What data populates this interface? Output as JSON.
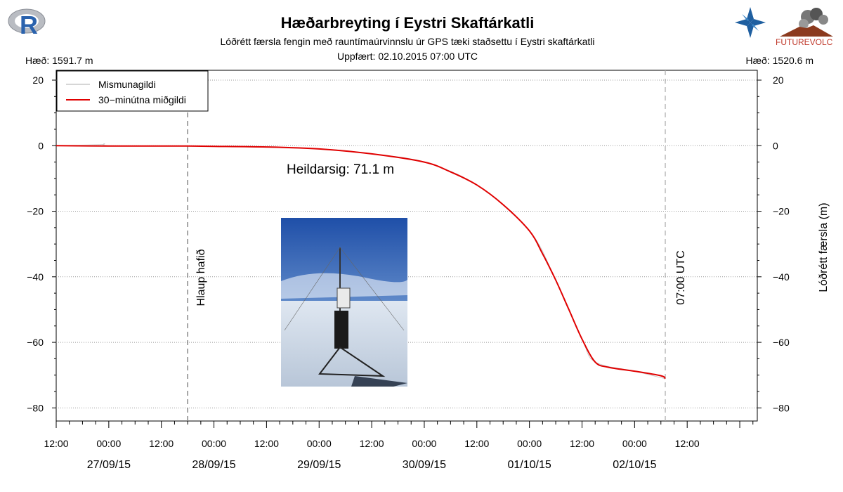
{
  "header": {
    "title": "Hæðarbreyting í Eystri Skaftárkatli",
    "subtitle": "Lóðrétt færsla fengin með rauntímaúrvinnslu úr GPS tæki staðsettu í Eystri skaftárkatli",
    "updated": "Uppfært: 02.10.2015 07:00 UTC",
    "height_left": "Hæð: 1591.7 m",
    "height_right": "Hæð: 1520.6 m",
    "futurevolc_logo_text": "FUTUREVOLC",
    "r_logo_text": "R"
  },
  "colors": {
    "median_line": "#e00000",
    "difference_line": "#c8c8c8",
    "event_line": "#888888",
    "now_line": "#aaaaaa",
    "grid": "#999999"
  },
  "chart_data": {
    "type": "line",
    "title": "Hæðarbreyting í Eystri Skaftárkatli",
    "ylabel": "Lóðrétt færsla (m)",
    "ylim": [
      -84,
      23
    ],
    "yticks": [
      20,
      0,
      -20,
      -40,
      -60,
      -80
    ],
    "xlim": [
      "2015-09-26T12:00",
      "2015-10-03T04:00"
    ],
    "x_tick_labels": [
      "12:00",
      "00:00",
      "12:00",
      "00:00",
      "12:00",
      "00:00",
      "12:00",
      "00:00",
      "12:00",
      "00:00",
      "12:00",
      "00:00",
      "12:00"
    ],
    "x_date_labels": [
      "27/09/15",
      "28/09/15",
      "29/09/15",
      "30/09/15",
      "01/10/15",
      "02/10/15"
    ],
    "grid": "dotted horizontal",
    "legend": {
      "placement": "top-left",
      "entries": [
        "Mismunagildi",
        "30−minútna miðgildi"
      ]
    },
    "annotations": {
      "total_subsidence": "Heildarsig: 71.1 m",
      "event_label": "Hlaup hafið",
      "event_x": "2015-09-27T18:00",
      "now_label": "07:00 UTC",
      "now_x": "2015-10-02T07:00"
    },
    "series": [
      {
        "name": "30−minútna miðgildi",
        "x": [
          "2015-09-26T12:00",
          "2015-09-27T00:00",
          "2015-09-27T12:00",
          "2015-09-27T18:00",
          "2015-09-28T00:00",
          "2015-09-28T12:00",
          "2015-09-29T00:00",
          "2015-09-29T12:00",
          "2015-09-30T00:00",
          "2015-09-30T06:00",
          "2015-09-30T12:00",
          "2015-09-30T18:00",
          "2015-10-01T00:00",
          "2015-10-01T03:00",
          "2015-10-01T06:00",
          "2015-10-01T09:00",
          "2015-10-01T12:00",
          "2015-10-01T15:00",
          "2015-10-01T18:00",
          "2015-10-02T00:00",
          "2015-10-02T06:00",
          "2015-10-02T07:00"
        ],
        "values": [
          0,
          -0.1,
          -0.1,
          -0.1,
          -0.2,
          -0.4,
          -1,
          -2.5,
          -5,
          -8,
          -12,
          -18,
          -26,
          -33,
          -41,
          -50,
          -59,
          -66,
          -67.6,
          -68.8,
          -70.2,
          -71.1
        ]
      },
      {
        "name": "Mismunagildi",
        "x": [
          "2015-09-26T12:00",
          "2015-09-26T22:00",
          "2015-09-26T23:00",
          "2015-09-27T01:00",
          "2015-09-28T00:00",
          "2015-09-29T00:00",
          "2015-09-29T12:00",
          "2015-09-30T00:00",
          "2015-09-30T12:00",
          "2015-10-01T00:00",
          "2015-10-01T06:00",
          "2015-10-01T12:00",
          "2015-10-01T15:00",
          "2015-10-02T00:00",
          "2015-10-02T07:00"
        ],
        "values": [
          0,
          0.3,
          0.6,
          0,
          -0.2,
          -1,
          -2.5,
          -5,
          -12,
          -26,
          -41,
          -59,
          -66,
          -68.8,
          -71.1
        ]
      }
    ]
  }
}
